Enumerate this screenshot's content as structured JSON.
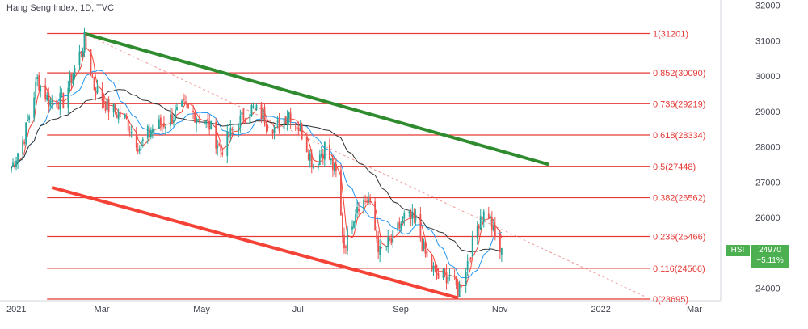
{
  "title": "Hang Seng Index, 1D, TVC",
  "symbol_tag": "HSI",
  "last_price": "24970",
  "change": "−5.11%",
  "colors": {
    "up": "#26a69a",
    "down": "#ef5350",
    "fib": "#e53935",
    "trend_upper": "#2e8b2e",
    "trend_lower": "#f44336",
    "ma_fast": "#f44336",
    "ma_mid": "#2196f3",
    "ma_slow": "#333333",
    "dotted": "#ef9a9a",
    "tag": "#4caf50"
  },
  "chart_data": {
    "type": "candlestick",
    "y_axis": {
      "ticks": [
        24000,
        25000,
        26000,
        27000,
        28000,
        29000,
        30000,
        31000,
        32000
      ],
      "labels": [
        "24000",
        "25000",
        "26000",
        "27000",
        "28000",
        "29000",
        "30000",
        "31000",
        "32000"
      ],
      "ylim": [
        23650,
        32150
      ]
    },
    "x_axis": {
      "labels": [
        "2021",
        "Mar",
        "May",
        "Jul",
        "Sep",
        "Nov",
        "2022",
        "Mar"
      ],
      "dates": [
        "2021-01-01",
        "2021-03-01",
        "2021-05-01",
        "2021-07-01",
        "2021-09-01",
        "2021-11-01",
        "2022-01-01",
        "2022-03-01"
      ]
    },
    "fib_levels": [
      {
        "label": "1(31201)",
        "value": 31201
      },
      {
        "label": "0.852(30090)",
        "value": 30090
      },
      {
        "label": "0.736(29219)",
        "value": 29219
      },
      {
        "label": "0.618(28334)",
        "value": 28334
      },
      {
        "label": "0.5(27448)",
        "value": 27448
      },
      {
        "label": "0.382(26562)",
        "value": 26562
      },
      {
        "label": "0.236(25466)",
        "value": 25466
      },
      {
        "label": "0.116(24566)",
        "value": 24566
      },
      {
        "label": "0(23695)",
        "value": 23695
      }
    ],
    "trendlines": [
      {
        "name": "upper",
        "from": [
          "2021-02-18",
          31200
        ],
        "to": [
          "2021-12-01",
          27500
        ]
      },
      {
        "name": "lower",
        "from": [
          "2021-01-29",
          26850
        ],
        "to": [
          "2021-10-06",
          23730
        ]
      }
    ],
    "dotted_line": {
      "from": [
        "2021-02-18",
        31200
      ],
      "to": [
        "2022-01-30",
        23750
      ]
    },
    "price_path": [
      [
        "2021-01-04",
        27400
      ],
      [
        "2021-01-12",
        28300
      ],
      [
        "2021-01-20",
        29900
      ],
      [
        "2021-01-27",
        29300
      ],
      [
        "2021-02-05",
        29300
      ],
      [
        "2021-02-18",
        31000
      ],
      [
        "2021-02-24",
        29700
      ],
      [
        "2021-03-05",
        29100
      ],
      [
        "2021-03-15",
        28800
      ],
      [
        "2021-03-24",
        28000
      ],
      [
        "2021-03-31",
        28500
      ],
      [
        "2021-04-09",
        28700
      ],
      [
        "2021-04-20",
        29100
      ],
      [
        "2021-04-28",
        28900
      ],
      [
        "2021-05-06",
        28600
      ],
      [
        "2021-05-13",
        27900
      ],
      [
        "2021-05-21",
        28500
      ],
      [
        "2021-05-31",
        29100
      ],
      [
        "2021-06-08",
        28900
      ],
      [
        "2021-06-16",
        28500
      ],
      [
        "2021-06-24",
        29000
      ],
      [
        "2021-07-02",
        28400
      ],
      [
        "2021-07-09",
        27500
      ],
      [
        "2021-07-16",
        28000
      ],
      [
        "2021-07-23",
        27200
      ],
      [
        "2021-07-28",
        25200
      ],
      [
        "2021-08-05",
        26400
      ],
      [
        "2021-08-12",
        26500
      ],
      [
        "2021-08-19",
        25000
      ],
      [
        "2021-08-27",
        25400
      ],
      [
        "2021-09-03",
        26000
      ],
      [
        "2021-09-10",
        25900
      ],
      [
        "2021-09-17",
        24800
      ],
      [
        "2021-09-24",
        24300
      ],
      [
        "2021-10-01",
        24400
      ],
      [
        "2021-10-06",
        23900
      ],
      [
        "2021-10-13",
        24900
      ],
      [
        "2021-10-20",
        26100
      ],
      [
        "2021-10-25",
        26100
      ],
      [
        "2021-10-29",
        25400
      ],
      [
        "2021-11-02",
        24970
      ]
    ]
  }
}
